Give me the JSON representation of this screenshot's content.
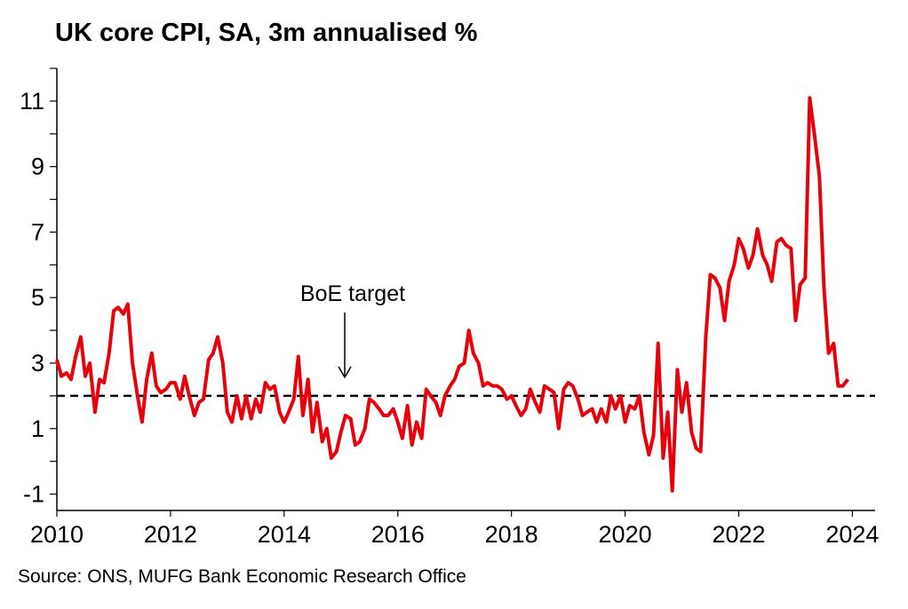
{
  "chart_data": {
    "type": "line",
    "title": "UK core CPI, SA, 3m annualised %",
    "source": "Source: ONS, MUFG Bank Economic Research Office",
    "annotation": "BoE target",
    "target": 2,
    "x": [
      2010,
      2010.08,
      2010.17,
      2010.25,
      2010.33,
      2010.42,
      2010.5,
      2010.58,
      2010.67,
      2010.75,
      2010.83,
      2010.92,
      2011,
      2011.08,
      2011.17,
      2011.25,
      2011.33,
      2011.42,
      2011.5,
      2011.58,
      2011.67,
      2011.75,
      2011.83,
      2011.92,
      2012,
      2012.08,
      2012.17,
      2012.25,
      2012.33,
      2012.42,
      2012.5,
      2012.58,
      2012.67,
      2012.75,
      2012.83,
      2012.92,
      2013,
      2013.08,
      2013.17,
      2013.25,
      2013.33,
      2013.42,
      2013.5,
      2013.58,
      2013.67,
      2013.75,
      2013.83,
      2013.92,
      2014,
      2014.08,
      2014.17,
      2014.25,
      2014.33,
      2014.42,
      2014.5,
      2014.58,
      2014.67,
      2014.75,
      2014.83,
      2014.92,
      2015,
      2015.08,
      2015.17,
      2015.25,
      2015.33,
      2015.42,
      2015.5,
      2015.58,
      2015.67,
      2015.75,
      2015.83,
      2015.92,
      2016,
      2016.08,
      2016.17,
      2016.25,
      2016.33,
      2016.42,
      2016.5,
      2016.58,
      2016.67,
      2016.75,
      2016.83,
      2016.92,
      2017,
      2017.08,
      2017.17,
      2017.25,
      2017.33,
      2017.42,
      2017.5,
      2017.58,
      2017.67,
      2017.75,
      2017.83,
      2017.92,
      2018,
      2018.08,
      2018.17,
      2018.25,
      2018.33,
      2018.42,
      2018.5,
      2018.58,
      2018.67,
      2018.75,
      2018.83,
      2018.92,
      2019,
      2019.08,
      2019.17,
      2019.25,
      2019.33,
      2019.42,
      2019.5,
      2019.58,
      2019.67,
      2019.75,
      2019.83,
      2019.92,
      2020,
      2020.08,
      2020.17,
      2020.25,
      2020.33,
      2020.42,
      2020.5,
      2020.58,
      2020.67,
      2020.75,
      2020.83,
      2020.92,
      2021,
      2021.08,
      2021.17,
      2021.25,
      2021.33,
      2021.42,
      2021.5,
      2021.58,
      2021.67,
      2021.75,
      2021.83,
      2021.92,
      2022,
      2022.08,
      2022.17,
      2022.25,
      2022.33,
      2022.42,
      2022.5,
      2022.58,
      2022.67,
      2022.75,
      2022.83,
      2022.92,
      2023,
      2023.08,
      2023.17,
      2023.25,
      2023.33,
      2023.42,
      2023.5,
      2023.58,
      2023.67,
      2023.75,
      2023.83,
      2023.92
    ],
    "series": [
      {
        "color": "#e8000b",
        "values": [
          3.1,
          2.6,
          2.7,
          2.5,
          3.2,
          3.8,
          2.6,
          3.0,
          1.5,
          2.5,
          2.4,
          3.3,
          4.6,
          4.7,
          4.5,
          4.8,
          3.0,
          2.0,
          1.2,
          2.5,
          3.3,
          2.3,
          2.1,
          2.2,
          2.4,
          2.4,
          1.9,
          2.6,
          2.0,
          1.4,
          1.8,
          1.9,
          3.1,
          3.3,
          3.8,
          3.0,
          1.5,
          1.2,
          2.0,
          1.3,
          2.0,
          1.3,
          1.9,
          1.5,
          2.4,
          2.2,
          2.3,
          1.5,
          1.2,
          1.5,
          1.9,
          3.2,
          1.4,
          2.5,
          0.9,
          1.8,
          0.6,
          1.0,
          0.1,
          0.3,
          0.9,
          1.4,
          1.3,
          0.5,
          0.6,
          1.0,
          1.9,
          1.8,
          1.6,
          1.4,
          1.4,
          1.6,
          1.2,
          0.7,
          1.7,
          0.5,
          1.2,
          0.7,
          2.2,
          2.0,
          1.8,
          1.4,
          2.0,
          2.3,
          2.5,
          2.9,
          3.0,
          4.0,
          3.3,
          3.0,
          2.3,
          2.4,
          2.3,
          2.3,
          2.2,
          1.9,
          2.0,
          1.7,
          1.4,
          1.6,
          2.2,
          1.8,
          1.5,
          2.3,
          2.2,
          2.1,
          1.0,
          2.2,
          2.4,
          2.3,
          1.9,
          1.4,
          1.5,
          1.6,
          1.2,
          1.6,
          1.2,
          2.0,
          1.6,
          2.0,
          1.2,
          1.7,
          1.6,
          2.0,
          0.9,
          0.2,
          0.8,
          3.6,
          0.1,
          1.5,
          -0.9,
          2.8,
          1.5,
          2.4,
          0.9,
          0.4,
          0.3,
          3.8,
          5.7,
          5.6,
          5.3,
          4.3,
          5.5,
          6.0,
          6.8,
          6.5,
          5.9,
          6.3,
          7.1,
          6.3,
          6.0,
          5.5,
          6.7,
          6.8,
          6.6,
          6.5,
          4.3,
          5.4,
          5.6,
          11.1,
          10.0,
          8.7,
          5.3,
          3.3,
          3.6,
          2.3,
          2.3,
          2.5
        ]
      }
    ],
    "xlim": [
      2010,
      2024.4
    ],
    "xticks": [
      2010,
      2012,
      2014,
      2016,
      2018,
      2020,
      2022,
      2024
    ],
    "ylim": [
      -1.5,
      12
    ],
    "yticks": [
      -1,
      1,
      3,
      5,
      7,
      9,
      11
    ],
    "yminorticks": [
      0,
      2,
      4,
      6,
      8,
      10,
      12
    ]
  }
}
